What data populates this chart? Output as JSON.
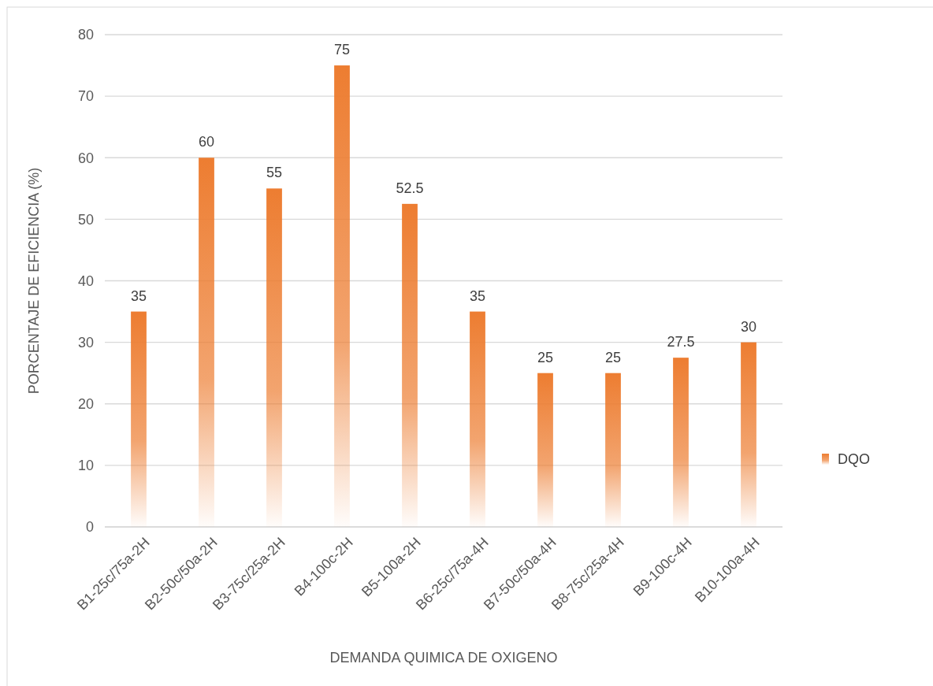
{
  "chart_data": {
    "type": "bar",
    "xlabel": "DEMANDA QUIMICA DE OXIGENO",
    "ylabel": "PORCENTAJE DE EFICIENCIA (%)",
    "categories": [
      "B1-25c/75a-2H",
      "B2-50c/50a-2H",
      "B3-75c/25a-2H",
      "B4-100c-2H",
      "B5-100a-2H",
      "B6-25c/75a-4H",
      "B7-50c/50a-4H",
      "B8-75c/25a-4H",
      "B9-100c-4H",
      "B10-100a-4H"
    ],
    "series": [
      {
        "name": "DQO",
        "color": "#ed7d31",
        "values": [
          35,
          60,
          55,
          75,
          52.5,
          35,
          25,
          25,
          27.5,
          30
        ]
      }
    ],
    "ylim": [
      0,
      80
    ],
    "yticks": [
      0,
      10,
      20,
      30,
      40,
      50,
      60,
      70,
      80
    ],
    "grid": "y",
    "legend": "right",
    "data_labels": true
  }
}
